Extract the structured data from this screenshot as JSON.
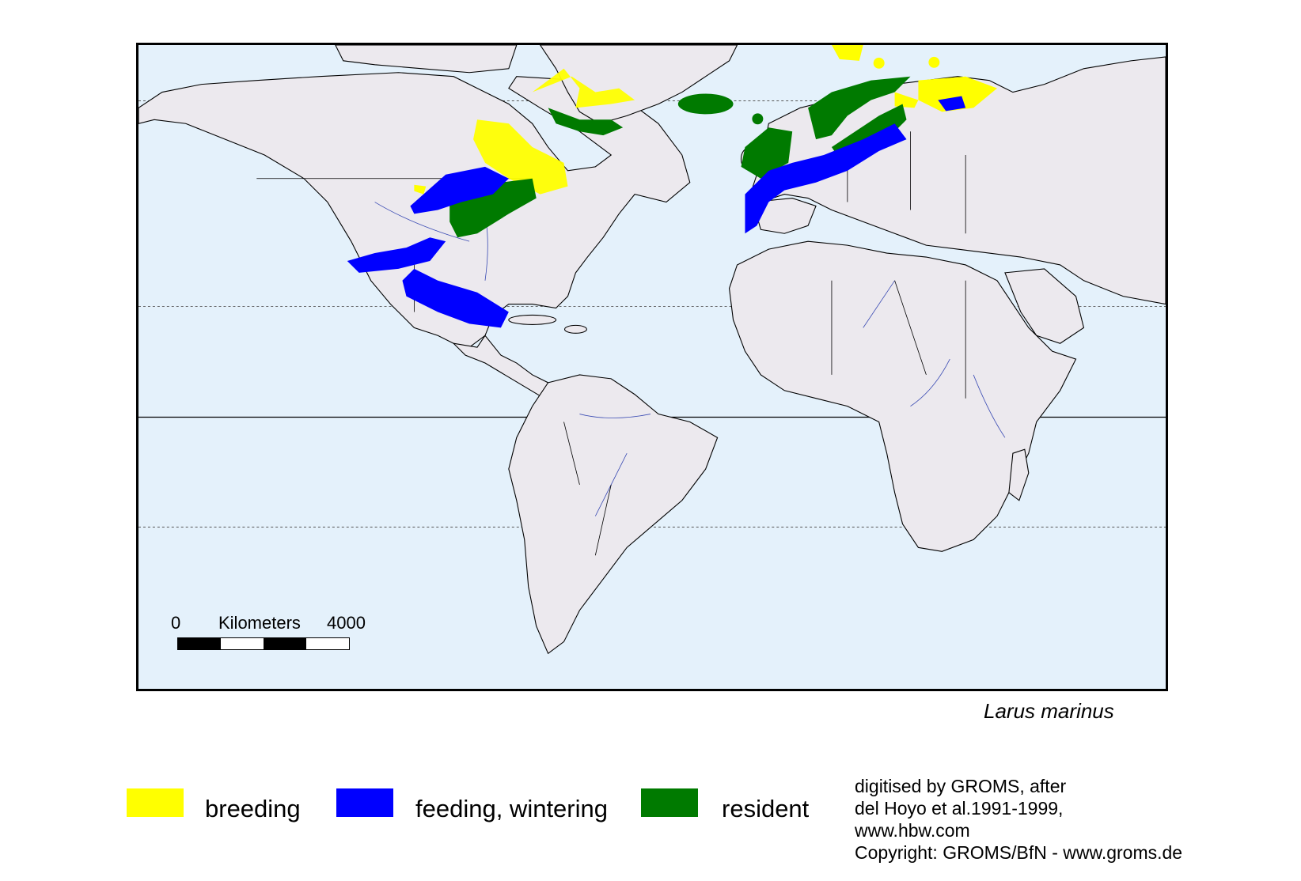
{
  "map": {
    "scale": {
      "start": "0",
      "unit": "Kilometers",
      "end": "4000"
    },
    "species": "Larus marinus",
    "colors": {
      "ocean": "#e4f1fb",
      "land": "#ece9ee",
      "breeding": "#ffff00",
      "feeding": "#0000ff",
      "resident": "#007a00"
    }
  },
  "legend": {
    "items": [
      {
        "label": "breeding",
        "color": "#ffff00"
      },
      {
        "label": "feeding, wintering",
        "color": "#0000ff"
      },
      {
        "label": "resident",
        "color": "#007a00"
      }
    ]
  },
  "credits": {
    "lines": [
      "digitised by GROMS, after",
      "del Hoyo et al.1991-1999,",
      "www.hbw.com",
      "Copyright: GROMS/BfN - www.groms.de"
    ]
  }
}
